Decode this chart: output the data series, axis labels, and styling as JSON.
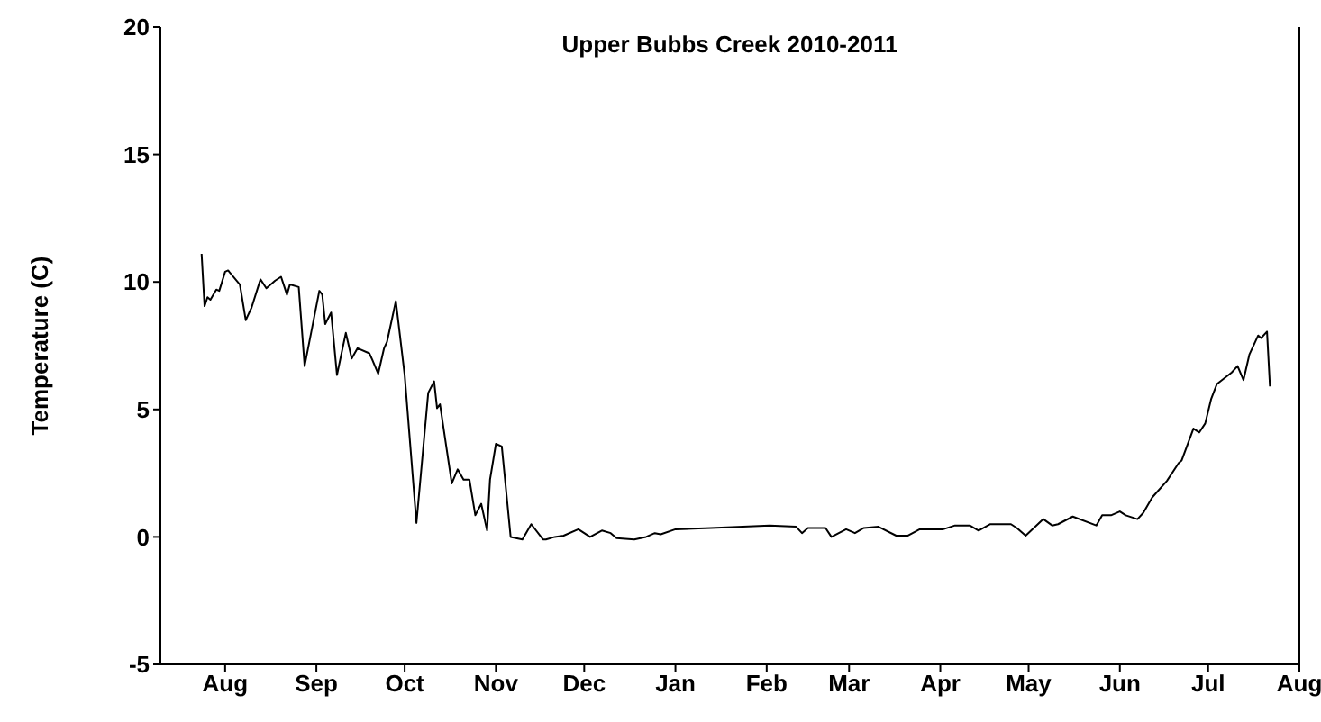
{
  "chart_data": {
    "type": "line",
    "title": "Upper Bubbs Creek 2010-2011",
    "ylabel": "Temperature (C)",
    "x": [
      "2010-08-07",
      "2010-08-08",
      "2010-08-09",
      "2010-08-10",
      "2010-08-12",
      "2010-08-13",
      "2010-08-15",
      "2010-08-16",
      "2010-08-20",
      "2010-08-22",
      "2010-08-24",
      "2010-08-27",
      "2010-08-29",
      "2010-09-01",
      "2010-09-03",
      "2010-09-05",
      "2010-09-06",
      "2010-09-09",
      "2010-09-11",
      "2010-09-16",
      "2010-09-17",
      "2010-09-18",
      "2010-09-20",
      "2010-09-22",
      "2010-09-25",
      "2010-09-27",
      "2010-09-29",
      "2010-10-03",
      "2010-10-04",
      "2010-10-06",
      "2010-10-08",
      "2010-10-09",
      "2010-10-12",
      "2010-10-15",
      "2010-10-19",
      "2010-10-23",
      "2010-10-25",
      "2010-10-26",
      "2010-10-27",
      "2010-10-31",
      "2010-11-02",
      "2010-11-04",
      "2010-11-06",
      "2010-11-08",
      "2010-11-10",
      "2010-11-12",
      "2010-11-13",
      "2010-11-15",
      "2010-11-17",
      "2010-11-20",
      "2010-11-24",
      "2010-11-27",
      "2010-12-01",
      "2010-12-02",
      "2010-12-05",
      "2010-12-08",
      "2010-12-13",
      "2010-12-17",
      "2010-12-21",
      "2010-12-24",
      "2010-12-26",
      "2011-01-01",
      "2011-01-05",
      "2011-01-08",
      "2011-01-10",
      "2011-01-15",
      "2011-01-27",
      "2011-02-16",
      "2011-02-25",
      "2011-02-27",
      "2011-03-01",
      "2011-03-07",
      "2011-03-09",
      "2011-03-14",
      "2011-03-17",
      "2011-03-20",
      "2011-03-25",
      "2011-03-31",
      "2011-04-04",
      "2011-04-08",
      "2011-04-12",
      "2011-04-16",
      "2011-04-20",
      "2011-04-25",
      "2011-04-28",
      "2011-05-02",
      "2011-05-09",
      "2011-05-11",
      "2011-05-14",
      "2011-05-20",
      "2011-05-23",
      "2011-05-25",
      "2011-05-30",
      "2011-06-07",
      "2011-06-09",
      "2011-06-12",
      "2011-06-15",
      "2011-06-17",
      "2011-06-21",
      "2011-06-23",
      "2011-06-26",
      "2011-07-01",
      "2011-07-05",
      "2011-07-06",
      "2011-07-10",
      "2011-07-12",
      "2011-07-14",
      "2011-07-16",
      "2011-07-18",
      "2011-07-23",
      "2011-07-25",
      "2011-07-27",
      "2011-07-29",
      "2011-08-01",
      "2011-08-02",
      "2011-08-04",
      "2011-08-05"
    ],
    "series": [
      {
        "color": "#000000",
        "values": [
          11.1,
          9.05,
          9.4,
          9.3,
          9.7,
          9.65,
          10.4,
          10.45,
          9.9,
          8.5,
          9.0,
          10.1,
          9.75,
          10.05,
          10.2,
          9.5,
          9.9,
          9.8,
          6.7,
          9.65,
          9.5,
          8.35,
          8.8,
          6.35,
          8.0,
          7.0,
          7.4,
          7.2,
          6.95,
          6.4,
          7.4,
          7.65,
          9.25,
          6.35,
          0.55,
          5.65,
          6.1,
          5.05,
          5.2,
          2.1,
          2.65,
          2.25,
          2.25,
          0.85,
          1.3,
          0.25,
          2.25,
          3.65,
          3.55,
          0.0,
          -0.1,
          0.5,
          -0.1,
          -0.1,
          0.0,
          0.05,
          0.3,
          0.0,
          0.25,
          0.15,
          -0.05,
          -0.1,
          0.0,
          0.15,
          0.1,
          0.3,
          0.35,
          0.45,
          0.4,
          0.15,
          0.35,
          0.35,
          0.0,
          0.3,
          0.15,
          0.35,
          0.4,
          0.05,
          0.05,
          0.3,
          0.3,
          0.3,
          0.45,
          0.45,
          0.25,
          0.5,
          0.5,
          0.35,
          0.05,
          0.7,
          0.45,
          0.5,
          0.8,
          0.45,
          0.85,
          0.85,
          1.0,
          0.85,
          0.7,
          0.95,
          1.55,
          2.2,
          2.9,
          3.0,
          4.25,
          4.1,
          4.45,
          5.4,
          6.0,
          6.45,
          6.7,
          6.15,
          7.15,
          7.9,
          7.8,
          8.05,
          5.9
        ]
      }
    ],
    "xlim": [
      "2010-07-24",
      "2011-08-15"
    ],
    "xticks": [
      {
        "value": "2010-08-15",
        "label": "Aug"
      },
      {
        "value": "2010-09-15",
        "label": "Sep"
      },
      {
        "value": "2010-10-15",
        "label": "Oct"
      },
      {
        "value": "2010-11-15",
        "label": "Nov"
      },
      {
        "value": "2010-12-15",
        "label": "Dec"
      },
      {
        "value": "2011-01-15",
        "label": "Jan"
      },
      {
        "value": "2011-02-15",
        "label": "Feb"
      },
      {
        "value": "2011-03-15",
        "label": "Mar"
      },
      {
        "value": "2011-04-15",
        "label": "Apr"
      },
      {
        "value": "2011-05-15",
        "label": "May"
      },
      {
        "value": "2011-06-15",
        "label": "Jun"
      },
      {
        "value": "2011-07-15",
        "label": "Jul"
      },
      {
        "value": "2011-08-15",
        "label": "Aug"
      }
    ],
    "ylim": [
      -5,
      20
    ],
    "yticks": [
      -5,
      0,
      5,
      10,
      15,
      20
    ]
  }
}
